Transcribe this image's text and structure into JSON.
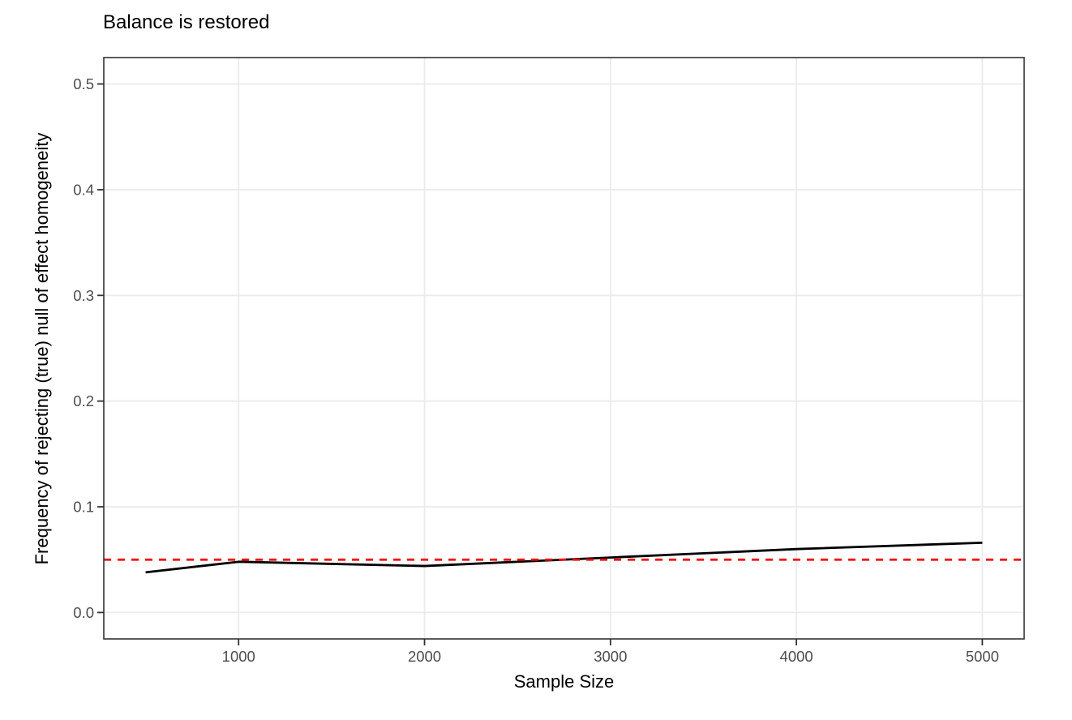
{
  "chart_data": {
    "type": "line",
    "title": "Balance is restored",
    "xlabel": "Sample Size",
    "ylabel": "Frequency of rejecting (true) null of effect homogeneity",
    "x": [
      500,
      1000,
      2000,
      3000,
      4000,
      5000
    ],
    "y": [
      0.038,
      0.048,
      0.044,
      0.052,
      0.06,
      0.066
    ],
    "reference_line": {
      "y": 0.05,
      "style": "dashed",
      "color": "#FF0000"
    },
    "x_tick_values": [
      1000,
      2000,
      3000,
      4000,
      5000
    ],
    "x_tick_labels": [
      "1000",
      "2000",
      "3000",
      "4000",
      "5000"
    ],
    "y_tick_values": [
      0.0,
      0.1,
      0.2,
      0.3,
      0.4,
      0.5
    ],
    "y_tick_labels": [
      "0.0",
      "0.1",
      "0.2",
      "0.3",
      "0.4",
      "0.5"
    ],
    "xlim": [
      275,
      5225
    ],
    "ylim": [
      -0.025,
      0.525
    ],
    "grid": "major-only",
    "legend": "none",
    "line_color": "#000000",
    "colors": {
      "grid": "#EBEBEB",
      "panel_border": "#333333",
      "tick_mark": "#333333",
      "tick_label": "#4D4D4D",
      "axis_title": "#000000",
      "title": "#000000",
      "background": "#FFFFFF"
    }
  }
}
